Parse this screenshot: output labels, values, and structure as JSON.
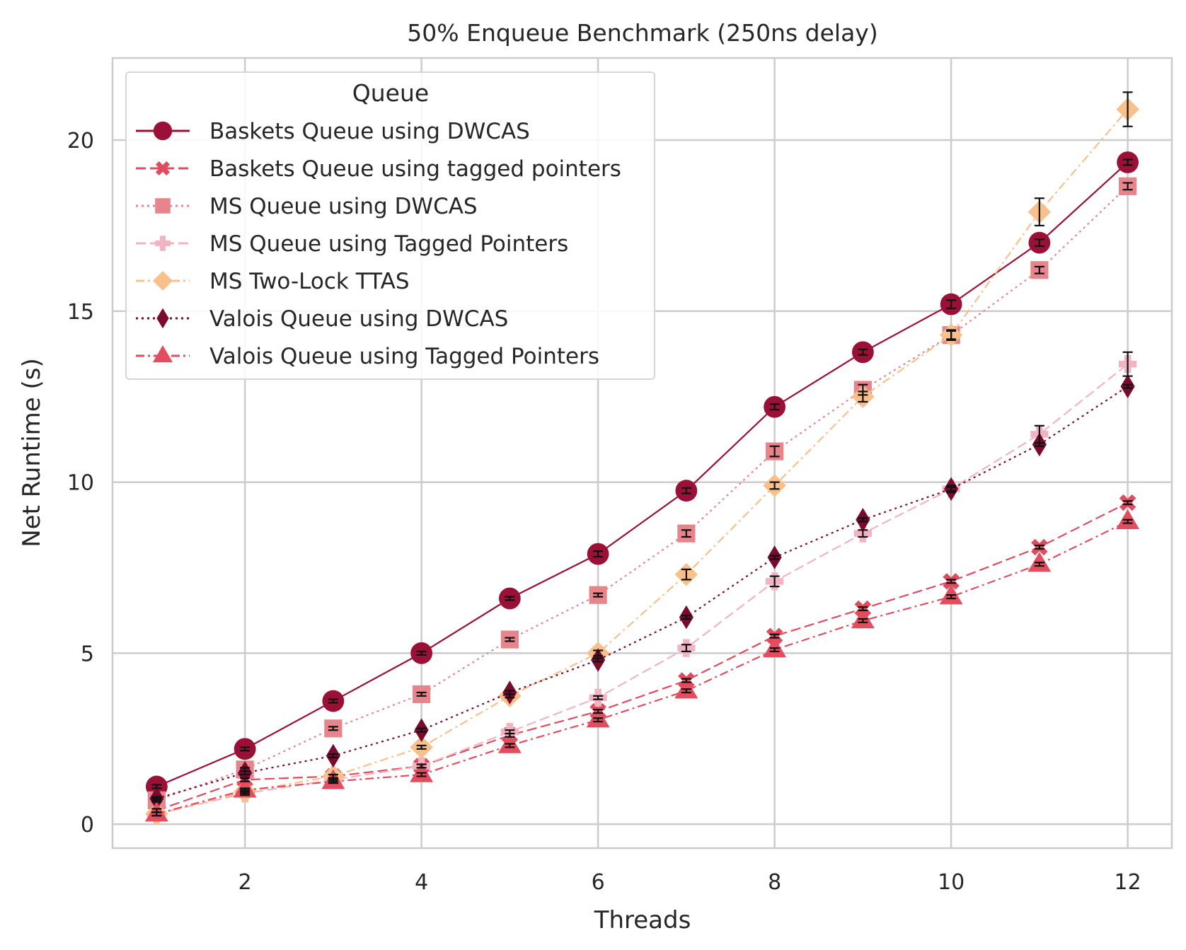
{
  "chart_data": {
    "type": "line",
    "title": "50% Enqueue Benchmark (250ns delay)",
    "xlabel": "Threads",
    "ylabel": "Net Runtime (s)",
    "xlim": [
      0.5,
      12.5
    ],
    "ylim": [
      -0.7,
      22.4
    ],
    "xticks": [
      2,
      4,
      6,
      8,
      10,
      12
    ],
    "yticks": [
      0,
      5,
      10,
      15,
      20
    ],
    "grid": true,
    "legend": {
      "title": "Queue",
      "placement": "top-left"
    },
    "x": [
      1,
      2,
      3,
      4,
      5,
      6,
      7,
      8,
      9,
      10,
      11,
      12
    ],
    "series": [
      {
        "name": "Baskets Queue using DWCAS",
        "color": "#9b1036",
        "line": "solid",
        "marker": "circle",
        "values": [
          1.1,
          2.2,
          3.6,
          5.0,
          6.6,
          7.9,
          9.75,
          12.2,
          13.8,
          15.2,
          17.0,
          19.35
        ],
        "errors": [
          0.05,
          0.05,
          0.05,
          0.05,
          0.05,
          0.08,
          0.08,
          0.08,
          0.08,
          0.12,
          0.1,
          0.08
        ]
      },
      {
        "name": "Baskets Queue using tagged pointers",
        "color": "#e04b5e",
        "line": "dashed",
        "marker": "x",
        "values": [
          0.4,
          1.3,
          1.4,
          1.7,
          2.6,
          3.3,
          4.2,
          5.5,
          6.3,
          7.1,
          8.1,
          9.4
        ],
        "errors": [
          0.05,
          0.05,
          0.05,
          0.05,
          0.05,
          0.05,
          0.05,
          0.05,
          0.05,
          0.05,
          0.05,
          0.05
        ]
      },
      {
        "name": "MS Queue using DWCAS",
        "color": "#e8848b",
        "line": "dotted",
        "marker": "square",
        "values": [
          0.7,
          1.6,
          2.8,
          3.8,
          5.4,
          6.7,
          8.5,
          10.9,
          12.7,
          14.3,
          16.2,
          18.65
        ],
        "errors": [
          0.05,
          0.05,
          0.05,
          0.05,
          0.05,
          0.05,
          0.1,
          0.15,
          0.15,
          0.12,
          0.1,
          0.1
        ]
      },
      {
        "name": "MS Queue using Tagged Pointers",
        "color": "#f2b3c3",
        "line": "dashed",
        "marker": "plus",
        "values": [
          0.3,
          0.9,
          1.3,
          1.7,
          2.7,
          3.7,
          5.15,
          7.1,
          8.5,
          9.8,
          11.4,
          13.45
        ],
        "errors": [
          0.05,
          0.05,
          0.05,
          0.05,
          0.05,
          0.05,
          0.1,
          0.15,
          0.1,
          0.1,
          0.25,
          0.35
        ]
      },
      {
        "name": "MS Two-Lock TTAS",
        "color": "#f9c08b",
        "line": "dashdot",
        "marker": "diamond",
        "values": [
          0.3,
          0.95,
          1.4,
          2.25,
          3.75,
          5.0,
          7.3,
          9.9,
          12.5,
          14.3,
          17.9,
          20.9
        ],
        "errors": [
          0.05,
          0.05,
          0.05,
          0.05,
          0.05,
          0.08,
          0.15,
          0.1,
          0.15,
          0.15,
          0.4,
          0.5
        ]
      },
      {
        "name": "Valois Queue using DWCAS",
        "color": "#7a0b2e",
        "line": "dotted",
        "marker": "thin-diamond",
        "values": [
          0.75,
          1.5,
          2.0,
          2.75,
          3.85,
          4.8,
          6.05,
          7.8,
          8.9,
          9.8,
          11.1,
          12.8
        ],
        "errors": [
          0.05,
          0.05,
          0.05,
          0.05,
          0.05,
          0.05,
          0.05,
          0.05,
          0.05,
          0.05,
          0.05,
          0.05
        ]
      },
      {
        "name": "Valois Queue using Tagged Pointers",
        "color": "#e34d5f",
        "line": "dashdot",
        "marker": "triangle",
        "values": [
          0.3,
          1.0,
          1.25,
          1.45,
          2.3,
          3.05,
          3.9,
          5.1,
          5.95,
          6.65,
          7.6,
          8.85
        ],
        "errors": [
          0.05,
          0.05,
          0.05,
          0.05,
          0.05,
          0.05,
          0.05,
          0.05,
          0.05,
          0.05,
          0.05,
          0.05
        ]
      }
    ]
  }
}
